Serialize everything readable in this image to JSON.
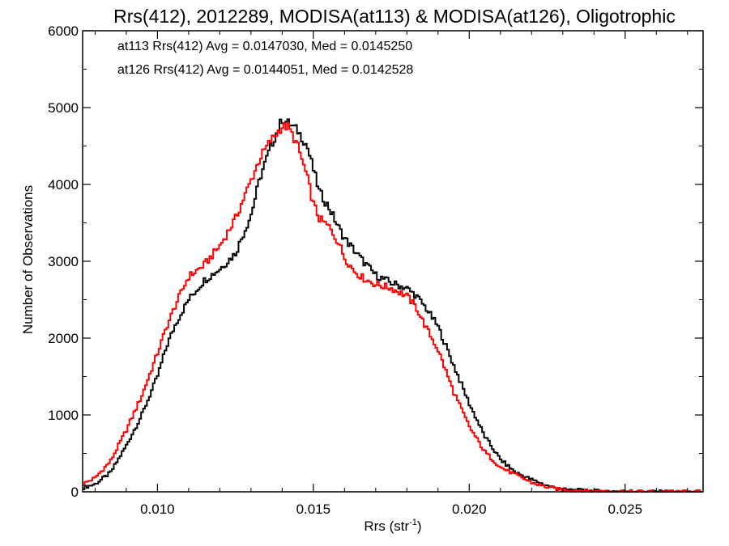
{
  "chart_data": {
    "type": "histogram",
    "title": "Rrs(412), 2012289, MODISA(at113) & MODISA(at126), Oligotrophic",
    "xlabel": "Rrs (str",
    "xlabel_sup": "-1",
    "xlabel_close": ")",
    "ylabel": "Number of Observations",
    "xlim": [
      0.0076,
      0.0275
    ],
    "ylim": [
      0,
      6000
    ],
    "xticks": [
      0.01,
      0.015,
      0.02,
      0.025
    ],
    "xtick_labels": [
      "0.010",
      "0.015",
      "0.020",
      "0.025"
    ],
    "yticks": [
      0,
      1000,
      2000,
      3000,
      4000,
      5000,
      6000
    ],
    "ytick_labels": [
      "0",
      "1000",
      "2000",
      "3000",
      "4000",
      "5000",
      "6000"
    ],
    "legend": [
      {
        "text": "at113 Rrs(412) Avg = 0.0147030, Med = 0.0145250",
        "color": "#000000"
      },
      {
        "text": "at126 Rrs(412) Avg = 0.0144051, Med = 0.0142528",
        "color": "#ff0000"
      }
    ],
    "series": [
      {
        "color": "#000000",
        "points": [
          [
            0.0076,
            50
          ],
          [
            0.008,
            100
          ],
          [
            0.0085,
            250
          ],
          [
            0.009,
            600
          ],
          [
            0.0095,
            1000
          ],
          [
            0.01,
            1500
          ],
          [
            0.0103,
            1900
          ],
          [
            0.0106,
            2200
          ],
          [
            0.011,
            2500
          ],
          [
            0.0115,
            2750
          ],
          [
            0.012,
            2900
          ],
          [
            0.0125,
            3100
          ],
          [
            0.013,
            3600
          ],
          [
            0.0133,
            4100
          ],
          [
            0.0136,
            4450
          ],
          [
            0.014,
            4850
          ],
          [
            0.0142,
            4800
          ],
          [
            0.0145,
            4700
          ],
          [
            0.0148,
            4500
          ],
          [
            0.015,
            4200
          ],
          [
            0.0152,
            3900
          ],
          [
            0.0155,
            3700
          ],
          [
            0.0158,
            3450
          ],
          [
            0.016,
            3300
          ],
          [
            0.0163,
            3150
          ],
          [
            0.0166,
            3000
          ],
          [
            0.017,
            2820
          ],
          [
            0.0175,
            2720
          ],
          [
            0.018,
            2650
          ],
          [
            0.0183,
            2550
          ],
          [
            0.0186,
            2400
          ],
          [
            0.019,
            2150
          ],
          [
            0.0195,
            1650
          ],
          [
            0.02,
            1150
          ],
          [
            0.0205,
            720
          ],
          [
            0.021,
            420
          ],
          [
            0.0215,
            250
          ],
          [
            0.022,
            160
          ],
          [
            0.0225,
            80
          ],
          [
            0.023,
            30
          ],
          [
            0.024,
            12
          ],
          [
            0.025,
            5
          ],
          [
            0.026,
            2
          ],
          [
            0.0275,
            1
          ]
        ]
      },
      {
        "color": "#ff0000",
        "points": [
          [
            0.0076,
            100
          ],
          [
            0.008,
            180
          ],
          [
            0.0085,
            400
          ],
          [
            0.009,
            800
          ],
          [
            0.0095,
            1250
          ],
          [
            0.01,
            1800
          ],
          [
            0.0103,
            2150
          ],
          [
            0.0106,
            2450
          ],
          [
            0.011,
            2800
          ],
          [
            0.0115,
            2950
          ],
          [
            0.012,
            3200
          ],
          [
            0.0125,
            3550
          ],
          [
            0.013,
            4050
          ],
          [
            0.0133,
            4350
          ],
          [
            0.0136,
            4550
          ],
          [
            0.014,
            4750
          ],
          [
            0.0142,
            4750
          ],
          [
            0.0145,
            4500
          ],
          [
            0.0148,
            4100
          ],
          [
            0.015,
            3750
          ],
          [
            0.0152,
            3550
          ],
          [
            0.0155,
            3450
          ],
          [
            0.0158,
            3250
          ],
          [
            0.016,
            3050
          ],
          [
            0.0163,
            2880
          ],
          [
            0.0166,
            2780
          ],
          [
            0.017,
            2700
          ],
          [
            0.0175,
            2650
          ],
          [
            0.018,
            2550
          ],
          [
            0.0183,
            2400
          ],
          [
            0.0186,
            2150
          ],
          [
            0.019,
            1850
          ],
          [
            0.0195,
            1300
          ],
          [
            0.02,
            850
          ],
          [
            0.0205,
            520
          ],
          [
            0.021,
            320
          ],
          [
            0.0215,
            220
          ],
          [
            0.022,
            120
          ],
          [
            0.0225,
            60
          ],
          [
            0.023,
            25
          ],
          [
            0.024,
            10
          ],
          [
            0.025,
            4
          ],
          [
            0.026,
            2
          ],
          [
            0.0275,
            1
          ]
        ]
      }
    ]
  }
}
